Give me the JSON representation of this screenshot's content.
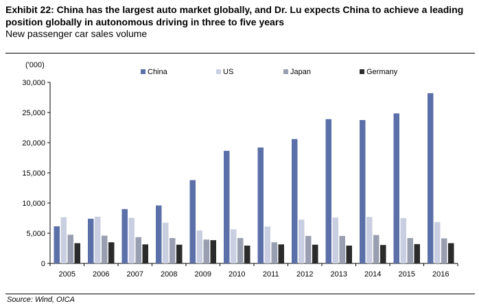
{
  "header": {
    "title": "Exhibit 22: China has the largest auto market globally, and Dr. Lu expects China to achieve a leading position globally in autonomous driving in three to five years",
    "subtitle": "New passenger car sales volume"
  },
  "footer": {
    "source": "Source: Wind, OICA"
  },
  "chart_data": {
    "type": "bar",
    "unit_label": "('000)",
    "categories": [
      "2005",
      "2006",
      "2007",
      "2008",
      "2009",
      "2010",
      "2011",
      "2012",
      "2013",
      "2014",
      "2015",
      "2016"
    ],
    "series": [
      {
        "name": "China",
        "color": "#5b70a8",
        "values": [
          6150,
          7400,
          9000,
          9600,
          13800,
          18650,
          19200,
          20600,
          23900,
          23750,
          24850,
          28200
        ]
      },
      {
        "name": "US",
        "color": "#c9cfe0",
        "values": [
          7650,
          7750,
          7550,
          6750,
          5450,
          5650,
          6100,
          7250,
          7600,
          7700,
          7500,
          6850
        ]
      },
      {
        "name": "Japan",
        "color": "#999fb0",
        "values": [
          4750,
          4600,
          4350,
          4200,
          3950,
          4200,
          3500,
          4550,
          4550,
          4700,
          4200,
          4150
        ]
      },
      {
        "name": "Germany",
        "color": "#2b2b2b",
        "values": [
          3350,
          3500,
          3150,
          3100,
          3850,
          2950,
          3150,
          3100,
          2950,
          3050,
          3200,
          3350
        ]
      }
    ],
    "ylim": [
      0,
      30000
    ],
    "yticks": [
      0,
      5000,
      10000,
      15000,
      20000,
      25000,
      30000
    ],
    "ytick_labels": [
      "0",
      "5,000",
      "10,000",
      "15,000",
      "20,000",
      "25,000",
      "30,000"
    ],
    "legend_position": "top",
    "grid": false
  }
}
